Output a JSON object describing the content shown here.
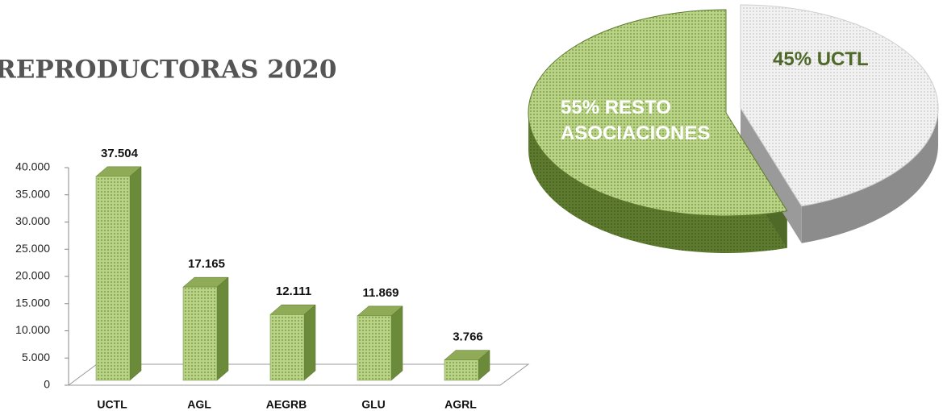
{
  "chart_data": [
    {
      "type": "bar3d",
      "title": "REPRODUCTORAS 2020",
      "categories": [
        "UCTL",
        "AGL",
        "AEGRB",
        "GLU",
        "AGRL"
      ],
      "values": [
        37504,
        17165,
        12111,
        11869,
        3766
      ],
      "value_labels": [
        "37.504",
        "17.165",
        "12.111",
        "11.869",
        "3.766"
      ],
      "color": "#a9c86e",
      "ylim": [
        0,
        40000
      ],
      "yticks": [
        0,
        {
          "value": 5000,
          "label": "5.000"
        },
        {
          "value": 10000,
          "label": "10.000"
        },
        {
          "value": 15000,
          "label": "15.000"
        },
        {
          "value": 20000,
          "label": "20.000"
        },
        {
          "value": 25000,
          "label": "25.000"
        },
        {
          "value": 30000,
          "label": "30.000"
        },
        {
          "value": 35000,
          "label": "35.000"
        },
        {
          "value": 40000,
          "label": "40.000"
        }
      ],
      "grid": false
    },
    {
      "type": "pie3d",
      "categories": [
        "RESTO ASOCIACIONES",
        "UCTL"
      ],
      "values": [
        55,
        45
      ],
      "value_labels": [
        "55%",
        "45%"
      ],
      "colors": [
        "#6e8f3a",
        "#efefef"
      ]
    }
  ]
}
